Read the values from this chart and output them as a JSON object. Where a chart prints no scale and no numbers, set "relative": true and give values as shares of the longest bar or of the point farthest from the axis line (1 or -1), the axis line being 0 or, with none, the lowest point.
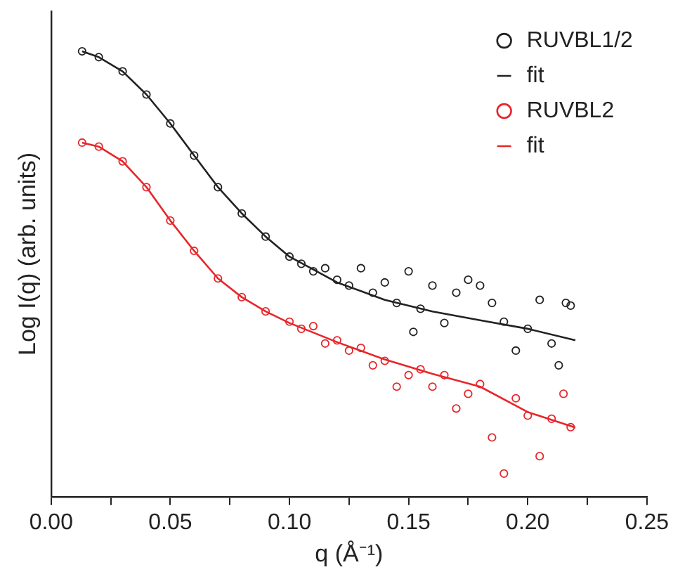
{
  "chart_data": {
    "type": "scatter",
    "xlabel": "q (Å⁻¹)",
    "ylabel": "Log I(q) (arb. units)",
    "relative": true,
    "legend": "top right",
    "grid": false,
    "xlim": [
      0,
      0.25
    ],
    "xticks": [
      {
        "value": 0,
        "label": "0.00"
      },
      {
        "value": 0.025,
        "label": null
      },
      {
        "value": 0.05,
        "label": "0.05"
      },
      {
        "value": 0.075,
        "label": null
      },
      {
        "value": 0.1,
        "label": "0.10"
      },
      {
        "value": 0.125,
        "label": null
      },
      {
        "value": 0.15,
        "label": "0.15"
      },
      {
        "value": 0.175,
        "label": null
      },
      {
        "value": 0.2,
        "label": "0.20"
      },
      {
        "value": 0.225,
        "label": null
      },
      {
        "value": 0.25,
        "label": "0.25"
      }
    ],
    "series": [
      {
        "name": "RUVBL1/2",
        "type": "scatter",
        "marker": "circle",
        "color": "#222222",
        "x": [
          0.013,
          0.02,
          0.03,
          0.04,
          0.05,
          0.06,
          0.07,
          0.08,
          0.09,
          0.1,
          0.105,
          0.11,
          0.115,
          0.12,
          0.125,
          0.13,
          0.135,
          0.14,
          0.145,
          0.15,
          0.152,
          0.155,
          0.16,
          0.165,
          0.17,
          0.175,
          0.18,
          0.185,
          0.19,
          0.195,
          0.2,
          0.205,
          0.21,
          0.213,
          0.216,
          0.218
        ],
        "values": [
          1.0,
          0.987,
          0.955,
          0.903,
          0.838,
          0.766,
          0.695,
          0.636,
          0.584,
          0.539,
          0.523,
          0.506,
          0.513,
          0.487,
          0.474,
          0.513,
          0.458,
          0.481,
          0.435,
          0.506,
          0.37,
          0.422,
          0.474,
          0.39,
          0.458,
          0.487,
          0.474,
          0.435,
          0.393,
          0.328,
          0.377,
          0.442,
          0.344,
          0.295,
          0.435,
          0.429
        ]
      },
      {
        "name": "fit",
        "type": "line",
        "marker": "none",
        "color": "#222222",
        "x": [
          0.013,
          0.02,
          0.03,
          0.04,
          0.05,
          0.06,
          0.07,
          0.08,
          0.09,
          0.1,
          0.12,
          0.14,
          0.16,
          0.18,
          0.2,
          0.22
        ],
        "values": [
          1.0,
          0.987,
          0.955,
          0.903,
          0.838,
          0.766,
          0.695,
          0.636,
          0.584,
          0.539,
          0.481,
          0.442,
          0.416,
          0.396,
          0.377,
          0.351
        ]
      },
      {
        "name": "RUVBL2",
        "type": "scatter",
        "marker": "circle",
        "color": "#e8262a",
        "x": [
          0.013,
          0.02,
          0.03,
          0.04,
          0.05,
          0.06,
          0.07,
          0.08,
          0.09,
          0.1,
          0.105,
          0.11,
          0.115,
          0.12,
          0.125,
          0.13,
          0.135,
          0.14,
          0.145,
          0.15,
          0.155,
          0.16,
          0.165,
          0.17,
          0.175,
          0.18,
          0.185,
          0.19,
          0.195,
          0.2,
          0.205,
          0.21,
          0.215,
          0.218
        ],
        "values": [
          0.795,
          0.786,
          0.753,
          0.695,
          0.62,
          0.552,
          0.49,
          0.448,
          0.416,
          0.393,
          0.377,
          0.383,
          0.344,
          0.351,
          0.328,
          0.334,
          0.295,
          0.305,
          0.247,
          0.273,
          0.286,
          0.247,
          0.273,
          0.198,
          0.231,
          0.253,
          0.133,
          0.052,
          0.221,
          0.182,
          0.091,
          0.175,
          0.231,
          0.156
        ]
      },
      {
        "name": "fit",
        "type": "line",
        "marker": "none",
        "color": "#e8262a",
        "x": [
          0.013,
          0.02,
          0.03,
          0.04,
          0.05,
          0.06,
          0.07,
          0.08,
          0.09,
          0.1,
          0.12,
          0.14,
          0.16,
          0.18,
          0.2,
          0.22
        ],
        "values": [
          0.795,
          0.786,
          0.753,
          0.695,
          0.62,
          0.552,
          0.49,
          0.448,
          0.416,
          0.39,
          0.347,
          0.308,
          0.276,
          0.247,
          0.19,
          0.155
        ]
      }
    ]
  }
}
